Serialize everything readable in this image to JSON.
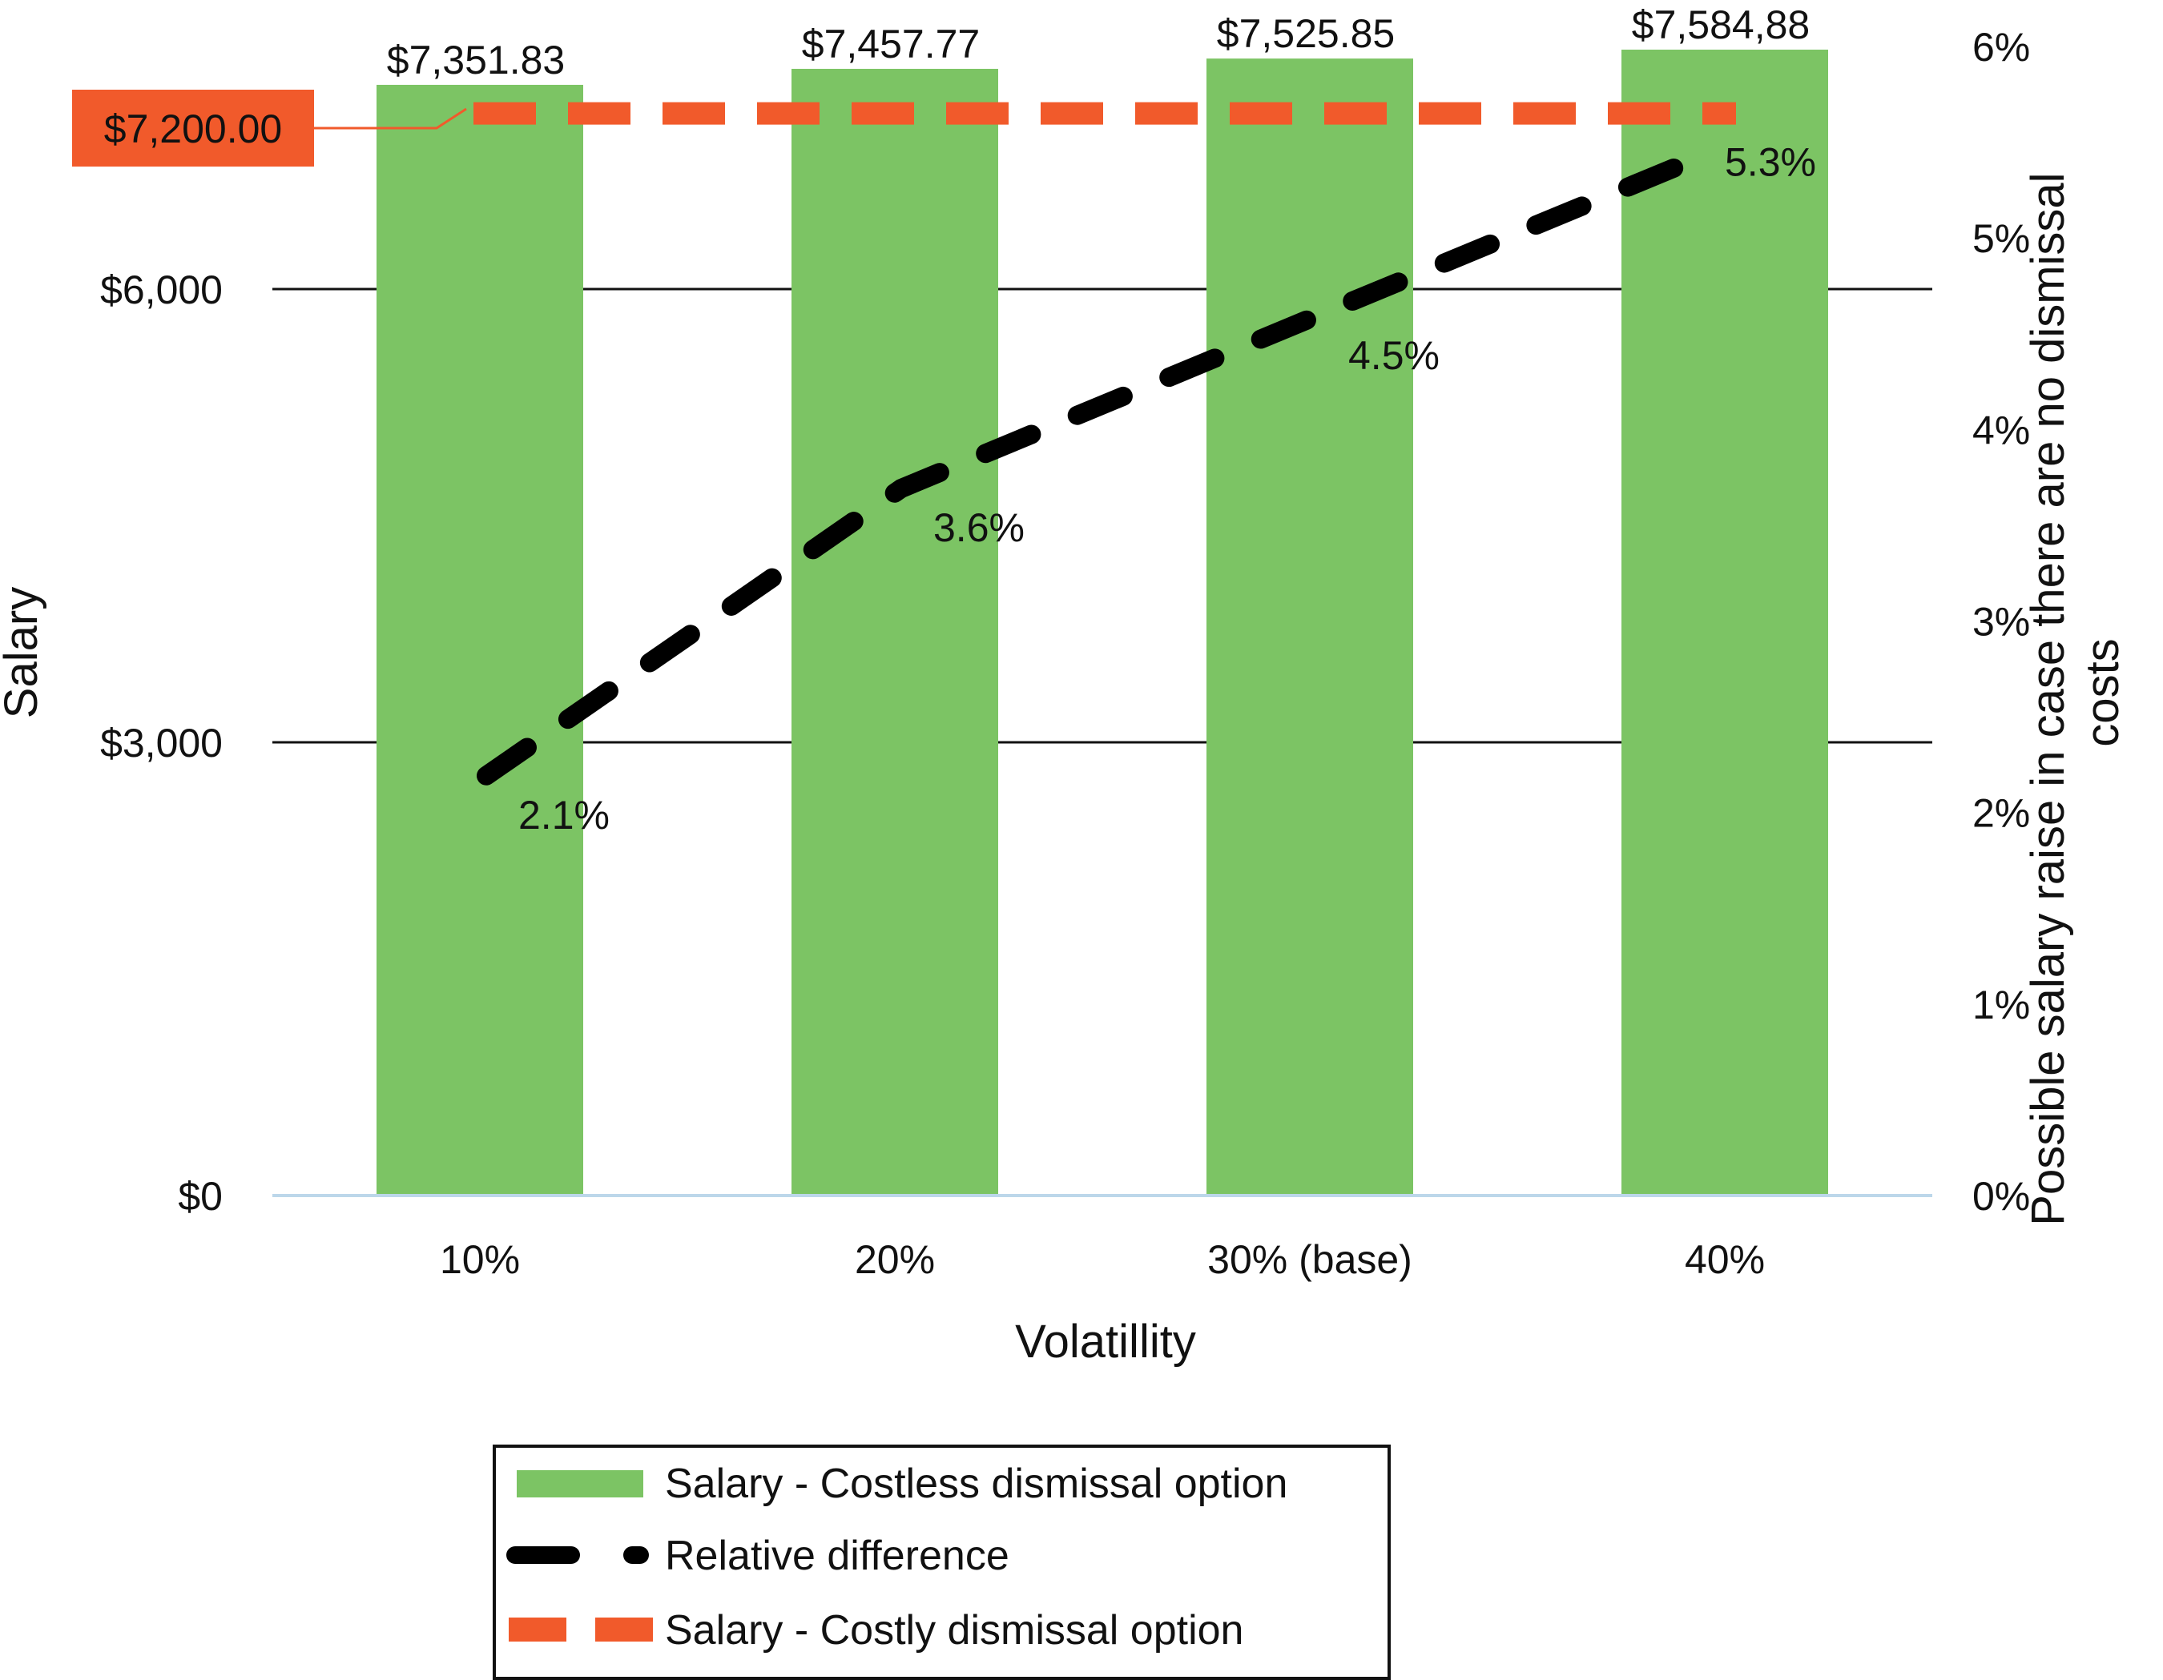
{
  "chart_data": {
    "type": "bar",
    "categories": [
      "10%",
      "20%",
      "30% (base)",
      "40%"
    ],
    "xlabel": "Volatillity",
    "ylabel": "Salary",
    "y2label_lines": [
      "Possible salary raise in case there are no dismissal",
      "costs"
    ],
    "ylim": [
      0,
      7700
    ],
    "y2lim": [
      0,
      6
    ],
    "yticks": [
      0,
      3000,
      6000
    ],
    "ytick_labels": [
      "$0",
      "$3,000",
      "$6,000"
    ],
    "y2ticks": [
      0,
      1,
      2,
      3,
      4,
      5,
      6
    ],
    "y2tick_labels": [
      "0%",
      "1%",
      "2%",
      "3%",
      "4%",
      "5%",
      "6%"
    ],
    "grid": "horizontal at y ticks",
    "series": [
      {
        "name": "Salary - Costless dismissal option",
        "kind": "bar",
        "axis": "left",
        "color": "#7cc464",
        "values": [
          7351.83,
          7457.77,
          7525.85,
          7584.88
        ],
        "labels": [
          "$7,351.83",
          "$7,457.77",
          "$7,525.85",
          "$7,584,88"
        ]
      },
      {
        "name": "Relative difference",
        "kind": "line",
        "style": "dashed",
        "axis": "right",
        "color": "#000000",
        "values": [
          2.1,
          3.6,
          4.5,
          5.3
        ],
        "labels": [
          "2.1%",
          "3.6%",
          "4.5%",
          "5.3%"
        ]
      },
      {
        "name": "Salary - Costly dismissal option",
        "kind": "reference-line",
        "style": "dashed",
        "axis": "left",
        "color": "#f15a2b",
        "value": 7200,
        "label": "$7,200.00"
      }
    ],
    "legend": "bottom-center"
  }
}
